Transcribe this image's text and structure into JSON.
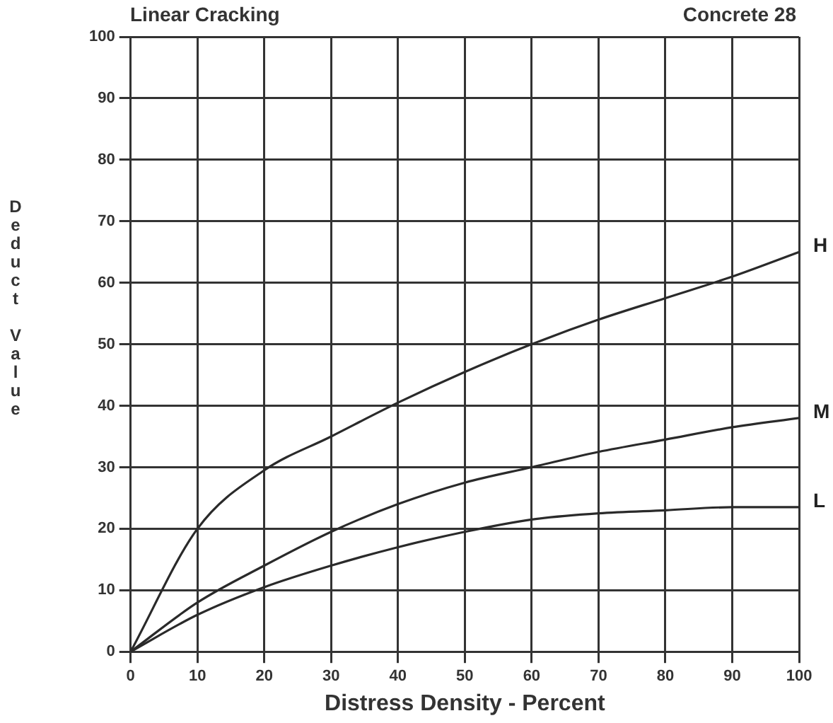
{
  "chart_data": {
    "type": "line",
    "title": "Linear Cracking",
    "subtitle": "Concrete 28",
    "xlabel": "Distress Density - Percent",
    "ylabel": "Deduct Value",
    "x": [
      0,
      10,
      20,
      30,
      40,
      50,
      60,
      70,
      80,
      90,
      100
    ],
    "series": [
      {
        "name": "H",
        "color": "#2a2a2a",
        "values": [
          0,
          20,
          29.5,
          35,
          40.5,
          45.5,
          50,
          54,
          57.5,
          61,
          65
        ]
      },
      {
        "name": "M",
        "color": "#2a2a2a",
        "values": [
          0,
          8,
          14,
          19.5,
          24,
          27.5,
          30,
          32.5,
          34.5,
          36.5,
          38
        ]
      },
      {
        "name": "L",
        "color": "#2a2a2a",
        "values": [
          0,
          6,
          10.5,
          14,
          17,
          19.5,
          21.5,
          22.5,
          23,
          23.5,
          23.5
        ]
      }
    ],
    "xlim": [
      0,
      100
    ],
    "xticks": [
      0,
      10,
      20,
      30,
      40,
      50,
      60,
      70,
      80,
      90,
      100
    ],
    "ylim": [
      0,
      100
    ],
    "yticks": [
      0,
      10,
      20,
      30,
      40,
      50,
      60,
      70,
      80,
      90,
      100
    ],
    "grid": true,
    "legend": false,
    "marker": "none",
    "line_style": "solid"
  }
}
